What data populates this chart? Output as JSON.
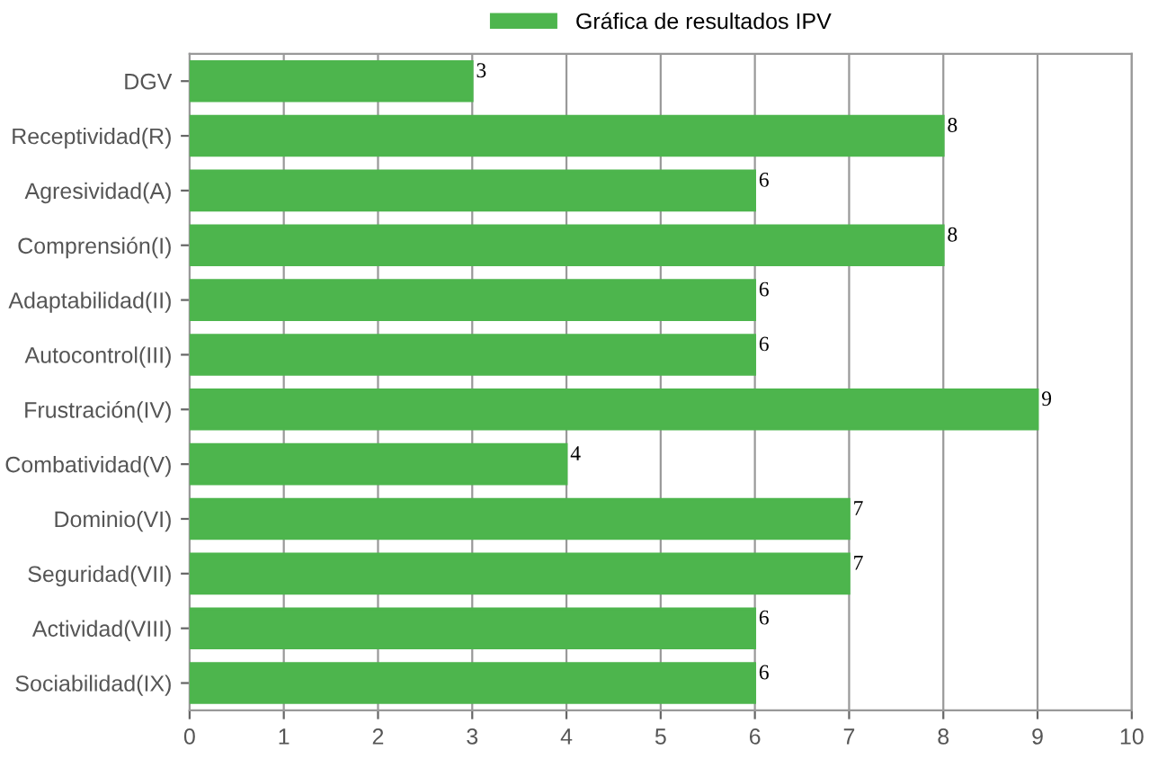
{
  "chart_data": {
    "type": "bar",
    "orientation": "horizontal",
    "categories": [
      "DGV",
      "Receptividad(R)",
      "Agresividad(A)",
      "Comprensión(I)",
      "Adaptabilidad(II)",
      "Autocontrol(III)",
      "Frustración(IV)",
      "Combatividad(V)",
      "Dominio(VI)",
      "Seguridad(VII)",
      "Actividad(VIII)",
      "Sociabilidad(IX)"
    ],
    "series": [
      {
        "name": "Gráfica de resultados IPV",
        "color": "#4db54d",
        "values": [
          3,
          8,
          6,
          8,
          6,
          6,
          9,
          4,
          7,
          7,
          6,
          6
        ]
      }
    ],
    "xlim": [
      0,
      10
    ],
    "xticks": [
      0,
      1,
      2,
      3,
      4,
      5,
      6,
      7,
      8,
      9,
      10
    ],
    "grid": "x",
    "legend": "top",
    "data_labels": true
  }
}
